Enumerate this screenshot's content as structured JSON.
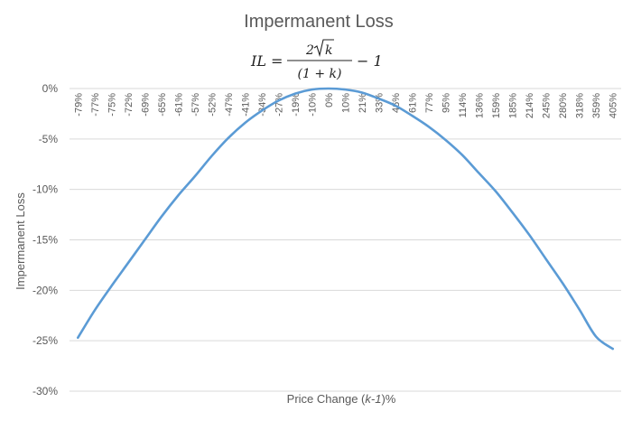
{
  "chart_data": {
    "type": "line",
    "title": "Impermanent Loss",
    "subtitle_formula": {
      "lhs": "IL",
      "numerator_coefficient": "2",
      "numerator_radicand": "k",
      "denominator": "(1 + k)",
      "tail": "− 1"
    },
    "xlabel": "Price Change (k-1)%",
    "xlabel_parts": {
      "pre": "Price Change (",
      "italic": "k-1",
      "post": ")%"
    },
    "ylabel": "Impermanent Loss",
    "y_ticks": [
      "0%",
      "-5%",
      "-10%",
      "-15%",
      "-20%",
      "-25%",
      "-30%"
    ],
    "ylim": [
      -30,
      0
    ],
    "grid": true,
    "legend": "none",
    "categories": [
      "-79%",
      "-77%",
      "-75%",
      "-72%",
      "-69%",
      "-65%",
      "-61%",
      "-57%",
      "-52%",
      "-47%",
      "-41%",
      "-34%",
      "-27%",
      "-19%",
      "-10%",
      "0%",
      "10%",
      "21%",
      "33%",
      "46%",
      "61%",
      "77%",
      "95%",
      "114%",
      "136%",
      "159%",
      "185%",
      "214%",
      "245%",
      "280%",
      "318%",
      "359%",
      "405%"
    ],
    "series": [
      {
        "color": "#5b9bd5",
        "values": [
          -24.7,
          -22.0,
          -19.6,
          -17.3,
          -15.0,
          -12.7,
          -10.6,
          -8.7,
          -6.7,
          -4.9,
          -3.4,
          -2.2,
          -1.2,
          -0.5,
          -0.1,
          0.0,
          -0.1,
          -0.4,
          -1.0,
          -1.7,
          -2.7,
          -3.8,
          -5.1,
          -6.6,
          -8.4,
          -10.2,
          -12.3,
          -14.5,
          -16.9,
          -19.3,
          -21.9,
          -24.6,
          -25.8
        ]
      }
    ]
  }
}
